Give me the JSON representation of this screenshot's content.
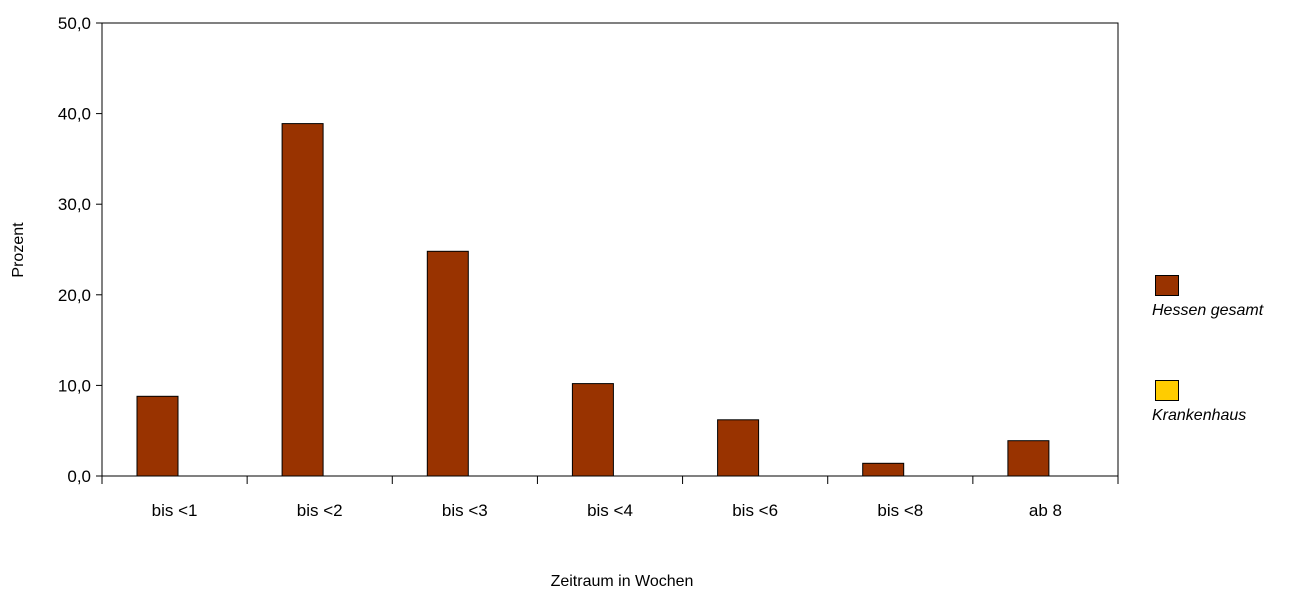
{
  "chart_data": {
    "type": "bar",
    "title": "",
    "xlabel": "Zeitraum in Wochen",
    "ylabel": "Prozent",
    "ylim": [
      0,
      50
    ],
    "yticks": [
      "0,0",
      "10,0",
      "20,0",
      "30,0",
      "40,0",
      "50,0"
    ],
    "categories": [
      "bis <1",
      "bis <2",
      "bis <3",
      "bis <4",
      "bis <6",
      "bis <8",
      "ab 8"
    ],
    "series": [
      {
        "name": "Hessen gesamt",
        "color": "#993300",
        "values": [
          8.8,
          38.9,
          24.8,
          10.2,
          6.2,
          1.4,
          3.9
        ]
      },
      {
        "name": "Krankenhaus",
        "color": "#FFCC00",
        "values": [
          0,
          0,
          0,
          0,
          0,
          0,
          0
        ]
      }
    ],
    "legend_position": "right",
    "grid": false
  }
}
